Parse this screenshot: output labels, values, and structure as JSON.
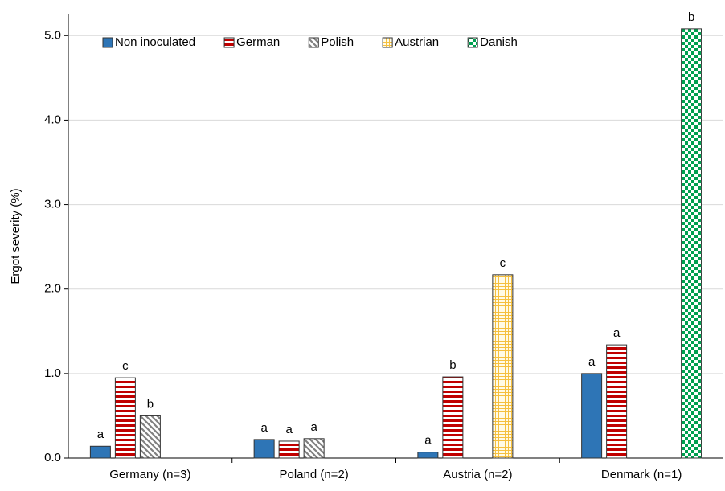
{
  "chart_data": {
    "type": "bar",
    "ylabel": "Ergot severity (%)",
    "categories": [
      "Germany (n=3)",
      "Poland (n=2)",
      "Austria (n=2)",
      "Denmark (n=1)"
    ],
    "series": [
      {
        "name": "Non inoculated",
        "color": "#2e75b6",
        "pattern": "solid",
        "values": [
          0.14,
          0.22,
          0.07,
          1.0
        ],
        "letters": [
          "a",
          "a",
          "a",
          "a"
        ]
      },
      {
        "name": "German",
        "color": "#c00000",
        "pattern": "horizontal",
        "values": [
          0.95,
          0.2,
          0.96,
          1.34
        ],
        "letters": [
          "c",
          "a",
          "b",
          "a"
        ]
      },
      {
        "name": "Polish",
        "color": "#808080",
        "pattern": "diagonal",
        "values": [
          0.5,
          0.23,
          null,
          null
        ],
        "letters": [
          "b",
          "a",
          null,
          null
        ]
      },
      {
        "name": "Austrian",
        "color": "#f5c040",
        "pattern": "grid",
        "values": [
          null,
          null,
          2.17,
          null
        ],
        "letters": [
          null,
          null,
          "c",
          null
        ]
      },
      {
        "name": "Danish",
        "color": "#00a050",
        "pattern": "checker",
        "values": [
          null,
          null,
          null,
          5.08
        ],
        "letters": [
          null,
          null,
          null,
          "b"
        ]
      }
    ],
    "ylim": [
      0,
      5.25
    ],
    "yticks": [
      {
        "value": 0,
        "label": "0.0"
      },
      {
        "value": 1,
        "label": "1.0"
      },
      {
        "value": 2,
        "label": "2.0"
      },
      {
        "value": 3,
        "label": "3.0"
      },
      {
        "value": 4,
        "label": "4.0"
      },
      {
        "value": 5,
        "label": "5.0"
      }
    ],
    "grid": true,
    "legend": "top-left"
  }
}
